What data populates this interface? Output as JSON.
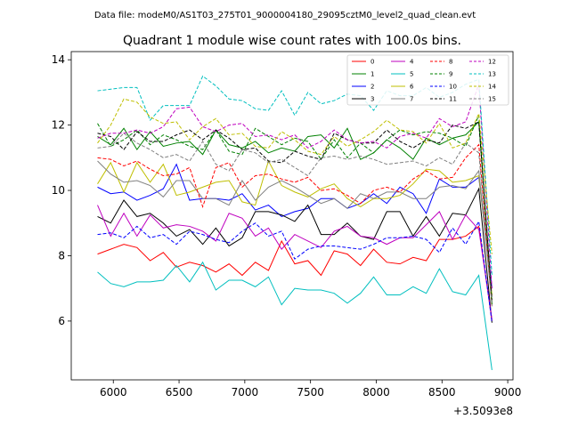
{
  "suptitle": "Data file: modeM0/AS1T03_275T01_9000004180_29095cztM0_level2_quad_clean.evt",
  "chart_data": {
    "type": "line",
    "title": "Quadrant 1 module wise count rates with 100.0s bins.",
    "xlabel": "",
    "ylabel": "",
    "offset_label": "+3.5093e8",
    "xlim": [
      5680,
      9040
    ],
    "ylim": [
      4.2,
      14.25
    ],
    "xticks": [
      6000,
      6500,
      7000,
      7500,
      8000,
      8500,
      9000
    ],
    "yticks": [
      6,
      8,
      10,
      12,
      14
    ],
    "x": [
      5880,
      5980,
      6080,
      6180,
      6280,
      6380,
      6480,
      6580,
      6680,
      6780,
      6880,
      6980,
      7080,
      7180,
      7280,
      7380,
      7480,
      7580,
      7680,
      7780,
      7880,
      7980,
      8080,
      8180,
      8280,
      8380,
      8480,
      8580,
      8680,
      8780,
      8880
    ],
    "legend_position": "top-right",
    "series": [
      {
        "name": "0",
        "color": "#ff0000",
        "dash": "solid",
        "values": [
          8.05,
          8.2,
          8.35,
          8.25,
          7.85,
          8.1,
          7.65,
          7.8,
          7.7,
          7.5,
          7.75,
          7.4,
          7.8,
          7.55,
          8.45,
          7.75,
          7.85,
          7.4,
          8.15,
          8.05,
          7.7,
          8.2,
          7.8,
          7.75,
          7.95,
          7.85,
          8.5,
          8.5,
          8.6,
          8.9,
          6.0
        ]
      },
      {
        "name": "1",
        "color": "#008000",
        "dash": "solid",
        "values": [
          11.65,
          11.4,
          11.9,
          11.25,
          11.8,
          11.35,
          11.45,
          11.5,
          11.1,
          11.85,
          11.4,
          11.3,
          11.5,
          11.15,
          11.3,
          11.2,
          11.65,
          11.7,
          11.3,
          11.9,
          10.95,
          11.15,
          11.55,
          11.3,
          10.95,
          11.6,
          11.4,
          11.6,
          11.7,
          12.1,
          6.6
        ]
      },
      {
        "name": "2",
        "color": "#0000ff",
        "dash": "solid",
        "values": [
          10.1,
          9.9,
          9.95,
          9.7,
          9.85,
          10.05,
          10.8,
          9.7,
          9.75,
          9.75,
          9.7,
          9.9,
          9.4,
          9.55,
          9.2,
          9.35,
          9.45,
          9.75,
          9.75,
          9.45,
          9.6,
          9.9,
          9.6,
          10.1,
          9.9,
          9.3,
          10.35,
          10.1,
          10.1,
          10.4,
          7.0
        ]
      },
      {
        "name": "3",
        "color": "#000000",
        "dash": "solid",
        "values": [
          9.2,
          9.0,
          9.7,
          9.2,
          9.3,
          9.0,
          8.6,
          8.8,
          8.35,
          8.85,
          8.3,
          8.55,
          9.35,
          9.35,
          9.25,
          9.05,
          9.55,
          8.65,
          8.65,
          9.0,
          8.6,
          8.5,
          9.35,
          9.35,
          8.6,
          9.2,
          8.6,
          9.3,
          9.25,
          10.05,
          5.95
        ]
      },
      {
        "name": "4",
        "color": "#bf00bf",
        "dash": "solid",
        "values": [
          9.55,
          8.6,
          9.3,
          8.6,
          9.25,
          8.85,
          8.95,
          8.9,
          8.75,
          8.45,
          9.3,
          9.15,
          8.6,
          8.85,
          8.2,
          8.65,
          8.45,
          8.25,
          8.75,
          8.9,
          8.6,
          8.55,
          8.35,
          8.55,
          8.55,
          8.95,
          9.35,
          8.5,
          9.25,
          8.8,
          6.05
        ]
      },
      {
        "name": "5",
        "color": "#00bfbf",
        "dash": "solid",
        "values": [
          7.5,
          7.15,
          7.05,
          7.2,
          7.2,
          7.25,
          7.7,
          7.2,
          7.8,
          6.95,
          7.25,
          7.25,
          7.05,
          7.35,
          6.5,
          7.0,
          6.95,
          6.95,
          6.85,
          6.55,
          6.85,
          7.35,
          6.8,
          6.8,
          7.05,
          6.85,
          7.6,
          6.9,
          6.8,
          7.4,
          4.5
        ]
      },
      {
        "name": "6",
        "color": "#bfbf00",
        "dash": "solid",
        "values": [
          10.2,
          10.85,
          9.95,
          10.85,
          10.25,
          10.8,
          9.85,
          9.95,
          10.1,
          10.25,
          10.3,
          9.65,
          9.55,
          10.9,
          10.15,
          9.95,
          9.8,
          10.05,
          10.2,
          9.75,
          9.5,
          9.75,
          9.75,
          9.85,
          10.2,
          10.65,
          10.6,
          10.25,
          10.3,
          10.45,
          6.8
        ]
      },
      {
        "name": "7",
        "color": "#808080",
        "dash": "solid",
        "values": [
          10.9,
          10.5,
          10.25,
          10.3,
          10.15,
          9.8,
          10.3,
          10.3,
          9.75,
          9.75,
          9.55,
          10.3,
          9.7,
          10.1,
          10.3,
          10.1,
          9.85,
          9.6,
          9.75,
          9.45,
          9.9,
          9.75,
          9.95,
          9.95,
          9.75,
          9.75,
          10.1,
          10.15,
          10.05,
          10.6,
          6.55
        ]
      },
      {
        "name": "8",
        "color": "#ff0000",
        "dash": "dashed",
        "values": [
          11.0,
          10.95,
          10.75,
          10.9,
          10.65,
          10.45,
          10.5,
          10.7,
          9.5,
          10.7,
          10.85,
          10.1,
          10.45,
          10.5,
          10.35,
          10.25,
          10.4,
          10.0,
          10.05,
          9.85,
          9.6,
          10.0,
          10.1,
          9.95,
          10.35,
          10.6,
          10.35,
          10.4,
          11.0,
          11.4,
          6.45
        ]
      },
      {
        "name": "9",
        "color": "#008000",
        "dash": "dashed",
        "values": [
          12.05,
          11.35,
          11.55,
          11.85,
          11.4,
          11.7,
          11.55,
          11.35,
          11.25,
          11.85,
          11.2,
          11.1,
          11.9,
          11.65,
          11.4,
          11.6,
          11.5,
          10.95,
          11.55,
          11.0,
          11.45,
          11.15,
          11.55,
          11.85,
          11.7,
          11.8,
          11.75,
          11.6,
          11.35,
          12.3,
          6.5
        ]
      },
      {
        "name": "10",
        "color": "#0000ff",
        "dash": "dashed",
        "values": [
          8.65,
          8.7,
          8.55,
          8.9,
          8.55,
          8.65,
          8.35,
          8.75,
          8.65,
          8.5,
          8.4,
          8.75,
          9.0,
          8.6,
          8.75,
          7.9,
          8.2,
          8.3,
          8.3,
          8.25,
          8.2,
          8.35,
          8.55,
          8.55,
          8.6,
          8.5,
          8.1,
          8.85,
          8.35,
          9.05,
          5.95
        ]
      },
      {
        "name": "11",
        "color": "#000000",
        "dash": "dashed",
        "values": [
          11.75,
          11.65,
          11.25,
          11.8,
          11.5,
          11.5,
          11.7,
          11.85,
          11.55,
          11.85,
          11.6,
          11.25,
          11.3,
          10.9,
          10.85,
          11.2,
          11.05,
          10.95,
          11.75,
          11.55,
          11.45,
          11.45,
          11.85,
          11.5,
          11.3,
          11.55,
          11.45,
          12.0,
          11.9,
          12.1,
          6.65
        ]
      },
      {
        "name": "12",
        "color": "#bf00bf",
        "dash": "dashed",
        "values": [
          11.6,
          11.75,
          11.75,
          11.85,
          11.75,
          11.95,
          12.5,
          12.55,
          11.95,
          11.8,
          12.0,
          12.05,
          11.65,
          11.7,
          11.55,
          11.7,
          11.3,
          11.5,
          11.85,
          11.55,
          11.45,
          11.5,
          11.3,
          11.65,
          11.75,
          11.6,
          12.2,
          11.95,
          12.1,
          13.25,
          7.0
        ]
      },
      {
        "name": "13",
        "color": "#00bfbf",
        "dash": "dashed",
        "values": [
          13.05,
          13.1,
          13.15,
          13.15,
          12.15,
          12.6,
          12.6,
          12.6,
          13.5,
          13.2,
          12.8,
          12.75,
          12.5,
          12.45,
          13.05,
          12.3,
          13.0,
          12.65,
          12.75,
          12.95,
          12.9,
          12.45,
          13.05,
          12.9,
          12.9,
          13.15,
          12.85,
          13.0,
          13.25,
          13.4,
          7.4
        ]
      },
      {
        "name": "14",
        "color": "#bfbf00",
        "dash": "dashed",
        "values": [
          11.45,
          12.0,
          12.8,
          12.7,
          12.25,
          12.05,
          12.1,
          11.55,
          11.95,
          12.2,
          11.7,
          11.75,
          11.35,
          11.3,
          11.8,
          11.55,
          11.2,
          11.1,
          11.65,
          11.35,
          11.55,
          11.8,
          12.15,
          11.85,
          11.8,
          11.45,
          12.05,
          11.3,
          11.45,
          12.35,
          8.05
        ]
      },
      {
        "name": "15",
        "color": "#808080",
        "dash": "dashed",
        "values": [
          11.3,
          11.35,
          11.75,
          11.45,
          11.25,
          11.0,
          11.1,
          10.9,
          11.5,
          10.8,
          10.6,
          11.25,
          11.15,
          10.85,
          10.95,
          10.7,
          10.45,
          11.0,
          11.05,
          10.95,
          11.05,
          10.95,
          10.8,
          10.85,
          10.9,
          10.75,
          11.0,
          10.8,
          11.45,
          11.15,
          6.45
        ]
      }
    ]
  }
}
